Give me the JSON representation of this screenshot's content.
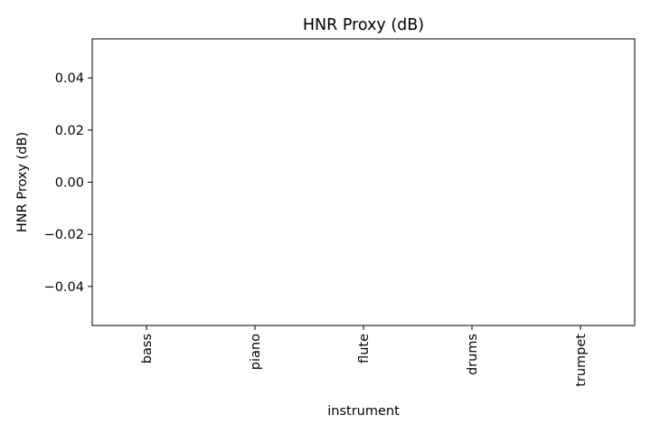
{
  "chart_data": {
    "type": "bar",
    "title": "HNR Proxy (dB)",
    "xlabel": "instrument",
    "ylabel": "HNR Proxy (dB)",
    "categories": [
      "bass",
      "piano",
      "flute",
      "drums",
      "trumpet"
    ],
    "series": [
      {
        "values": [
          null,
          null,
          null,
          null,
          null
        ]
      }
    ],
    "yticks": [
      -0.04,
      -0.02,
      0.0,
      0.02,
      0.04
    ],
    "ytick_labels": [
      "−0.04",
      "−0.02",
      "0.00",
      "0.02",
      "0.04"
    ],
    "ylim": [
      -0.055,
      0.055
    ],
    "grid": false,
    "legend": "none",
    "colors": {
      "axis": "#000000",
      "background": "#ffffff"
    }
  }
}
